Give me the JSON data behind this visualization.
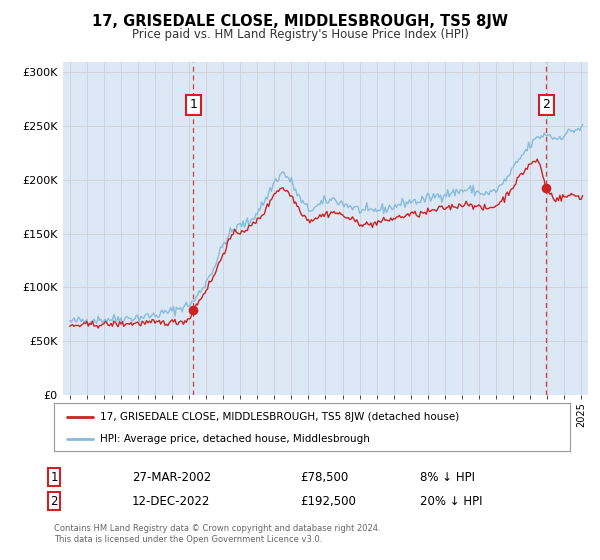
{
  "title": "17, GRISEDALE CLOSE, MIDDLESBROUGH, TS5 8JW",
  "subtitle": "Price paid vs. HM Land Registry's House Price Index (HPI)",
  "bg_color": "#ffffff",
  "plot_bg_color": "#dce8f5",
  "hpi_color": "#88bbdd",
  "price_color": "#cc2222",
  "marker_color": "#cc2222",
  "sale1_date": 2002.24,
  "sale1_price": 78500,
  "sale2_date": 2022.95,
  "sale2_price": 192500,
  "ylim": [
    0,
    310000
  ],
  "xlim": [
    1994.6,
    2025.4
  ],
  "yticks": [
    0,
    50000,
    100000,
    150000,
    200000,
    250000,
    300000
  ],
  "ytick_labels": [
    "£0",
    "£50K",
    "£100K",
    "£150K",
    "£200K",
    "£250K",
    "£300K"
  ],
  "xticks": [
    1995,
    1996,
    1997,
    1998,
    1999,
    2000,
    2001,
    2002,
    2003,
    2004,
    2005,
    2006,
    2007,
    2008,
    2009,
    2010,
    2011,
    2012,
    2013,
    2014,
    2015,
    2016,
    2017,
    2018,
    2019,
    2020,
    2021,
    2022,
    2023,
    2024,
    2025
  ],
  "legend_label1": "17, GRISEDALE CLOSE, MIDDLESBROUGH, TS5 8JW (detached house)",
  "legend_label2": "HPI: Average price, detached house, Middlesbrough",
  "table_row1": [
    "1",
    "27-MAR-2002",
    "£78,500",
    "8% ↓ HPI"
  ],
  "table_row2": [
    "2",
    "12-DEC-2022",
    "£192,500",
    "20% ↓ HPI"
  ],
  "footer1": "Contains HM Land Registry data © Crown copyright and database right 2024.",
  "footer2": "This data is licensed under the Open Government Licence v3.0."
}
